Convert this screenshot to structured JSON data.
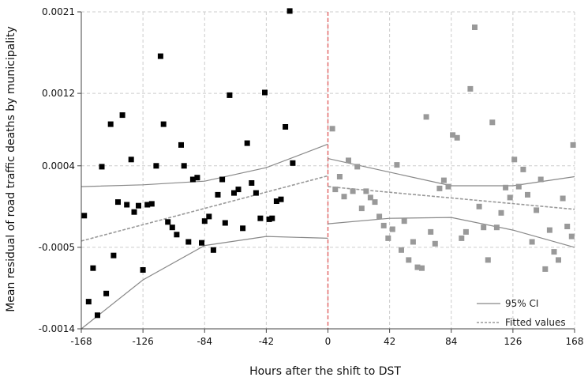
{
  "chart_data": {
    "type": "scatter",
    "title": "",
    "xlabel": "Hours after the shift to DST",
    "ylabel": "Mean residual of road traffic deaths by municipality",
    "xlim": [
      -168,
      168
    ],
    "ylim": [
      -0.0014,
      0.0021
    ],
    "x_ticks": [
      -168,
      -126,
      -84,
      -42,
      0,
      42,
      84,
      126,
      168
    ],
    "x_tick_labels": [
      "-168",
      "-126",
      "-84",
      "-42",
      "0",
      "42",
      "84",
      "126",
      "168"
    ],
    "y_ticks": [
      -0.0014,
      -0.0005,
      0.0004,
      0.0012,
      0.0021
    ],
    "y_tick_labels": [
      "-0.0014",
      "-0.0005",
      "0.0004",
      "0.0012",
      "0.0021"
    ],
    "grid": true,
    "cutoff_x": 0,
    "legend_position": "bottom-right",
    "legend": [
      {
        "label": "95% CI",
        "style": "solid"
      },
      {
        "label": "Fitted values",
        "style": "dashed"
      }
    ],
    "colors": {
      "pre_points": "#000000",
      "post_points": "#999999",
      "ci_line": "#888888",
      "fit_line": "#999999",
      "cutoff_line": "#e06060",
      "grid": "#cccccc"
    },
    "series": [
      {
        "points": [
          [
            -166,
            -0.00015
          ],
          [
            -163,
            -0.0011
          ],
          [
            -160,
            -0.00073
          ],
          [
            -157,
            -0.00125
          ],
          [
            -154,
            0.00039
          ],
          [
            -151,
            -0.00101
          ],
          [
            -148,
            0.00086
          ],
          [
            -146,
            -0.00059
          ],
          [
            -143,
            0.0
          ],
          [
            -140,
            0.00096
          ],
          [
            -137,
            -3e-05
          ],
          [
            -134,
            0.00047
          ],
          [
            -132,
            -0.00011
          ],
          [
            -129,
            -4e-05
          ],
          [
            -126,
            -0.00075
          ],
          [
            -123,
            -3e-05
          ],
          [
            -120,
            -2e-05
          ],
          [
            -117,
            0.0004
          ],
          [
            -114,
            0.00161
          ],
          [
            -112,
            0.00086
          ],
          [
            -109,
            -0.00022
          ],
          [
            -106,
            -0.00028
          ],
          [
            -103,
            -0.00036
          ],
          [
            -100,
            0.00063
          ],
          [
            -98,
            0.0004
          ],
          [
            -95,
            -0.00044
          ],
          [
            -92,
            0.00025
          ],
          [
            -89,
            0.00027
          ],
          [
            -86,
            -0.00045
          ],
          [
            -84,
            -0.00021
          ],
          [
            -81,
            -0.00016
          ],
          [
            -78,
            -0.00053
          ],
          [
            -75,
            8e-05
          ],
          [
            -72,
            0.00025
          ],
          [
            -70,
            -0.00023
          ],
          [
            -67,
            0.00118
          ],
          [
            -64,
            0.0001
          ],
          [
            -61,
            0.00014
          ],
          [
            -58,
            -0.00029
          ],
          [
            -55,
            0.00065
          ],
          [
            -52,
            0.00021
          ],
          [
            -49,
            0.0001
          ],
          [
            -46,
            -0.00018
          ],
          [
            -43,
            0.00121
          ],
          [
            -40,
            -0.00019
          ],
          [
            -38,
            -0.00018
          ],
          [
            -35,
            1e-05
          ],
          [
            -32,
            3e-05
          ],
          [
            -29,
            0.00083
          ],
          [
            -26,
            0.00211
          ],
          [
            -24,
            0.00043
          ]
        ]
      },
      {
        "points": [
          [
            3,
            0.00081
          ],
          [
            5,
            0.00014
          ],
          [
            8,
            0.00028
          ],
          [
            11,
            6e-05
          ],
          [
            14,
            0.00046
          ],
          [
            17,
            0.00012
          ],
          [
            20,
            0.00039
          ],
          [
            23,
            -7e-05
          ],
          [
            26,
            0.00012
          ],
          [
            29,
            5e-05
          ],
          [
            32,
            0.0
          ],
          [
            35,
            -0.00016
          ],
          [
            38,
            -0.00026
          ],
          [
            41,
            -0.0004
          ],
          [
            44,
            -0.0003
          ],
          [
            47,
            0.00041
          ],
          [
            50,
            -0.00053
          ],
          [
            52,
            -0.00021
          ],
          [
            55,
            -0.00064
          ],
          [
            58,
            -0.00044
          ],
          [
            61,
            -0.00072
          ],
          [
            64,
            -0.00073
          ],
          [
            67,
            0.00094
          ],
          [
            70,
            -0.00033
          ],
          [
            73,
            -0.00046
          ],
          [
            76,
            0.00015
          ],
          [
            79,
            0.00024
          ],
          [
            82,
            0.00017
          ],
          [
            85,
            0.00074
          ],
          [
            88,
            0.00071
          ],
          [
            91,
            -0.0004
          ],
          [
            94,
            -0.00033
          ],
          [
            97,
            0.00125
          ],
          [
            100,
            0.00193
          ],
          [
            103,
            -5e-05
          ],
          [
            106,
            -0.00028
          ],
          [
            109,
            -0.00064
          ],
          [
            112,
            0.00088
          ],
          [
            115,
            -0.00028
          ],
          [
            118,
            -0.00012
          ],
          [
            121,
            0.00016
          ],
          [
            124,
            5e-05
          ],
          [
            127,
            0.00047
          ],
          [
            130,
            0.00017
          ],
          [
            133,
            0.00036
          ],
          [
            136,
            8e-05
          ],
          [
            139,
            -0.00044
          ],
          [
            142,
            -9e-05
          ],
          [
            145,
            0.00025
          ],
          [
            148,
            -0.00074
          ],
          [
            151,
            -0.00031
          ],
          [
            154,
            -0.00055
          ],
          [
            157,
            -0.00064
          ],
          [
            160,
            4e-05
          ],
          [
            163,
            -0.00027
          ],
          [
            166,
            -0.00038
          ],
          [
            167,
            0.00063
          ]
        ]
      }
    ],
    "fitted_lines": [
      {
        "kind": "fit",
        "x": [
          -168,
          0
        ],
        "y": [
          -0.00043,
          0.00029
        ]
      },
      {
        "kind": "ci_upper",
        "x": [
          -168,
          -126,
          -84,
          -42,
          0
        ],
        "y": [
          0.00017,
          0.00019,
          0.00023,
          0.00038,
          0.00064
        ]
      },
      {
        "kind": "ci_lower",
        "x": [
          -168,
          -126,
          -84,
          -42,
          0
        ],
        "y": [
          -0.0014,
          -0.00086,
          -0.00048,
          -0.00038,
          -0.0004
        ]
      },
      {
        "kind": "fit",
        "x": [
          0,
          168
        ],
        "y": [
          0.00017,
          -8e-05
        ]
      },
      {
        "kind": "ci_upper",
        "x": [
          0,
          42,
          84,
          126,
          168
        ],
        "y": [
          0.00048,
          0.00033,
          0.00018,
          0.00018,
          0.00028
        ]
      },
      {
        "kind": "ci_lower",
        "x": [
          0,
          42,
          84,
          126,
          168
        ],
        "y": [
          -0.00024,
          -0.00018,
          -0.00017,
          -0.00031,
          -0.0005
        ]
      }
    ]
  }
}
